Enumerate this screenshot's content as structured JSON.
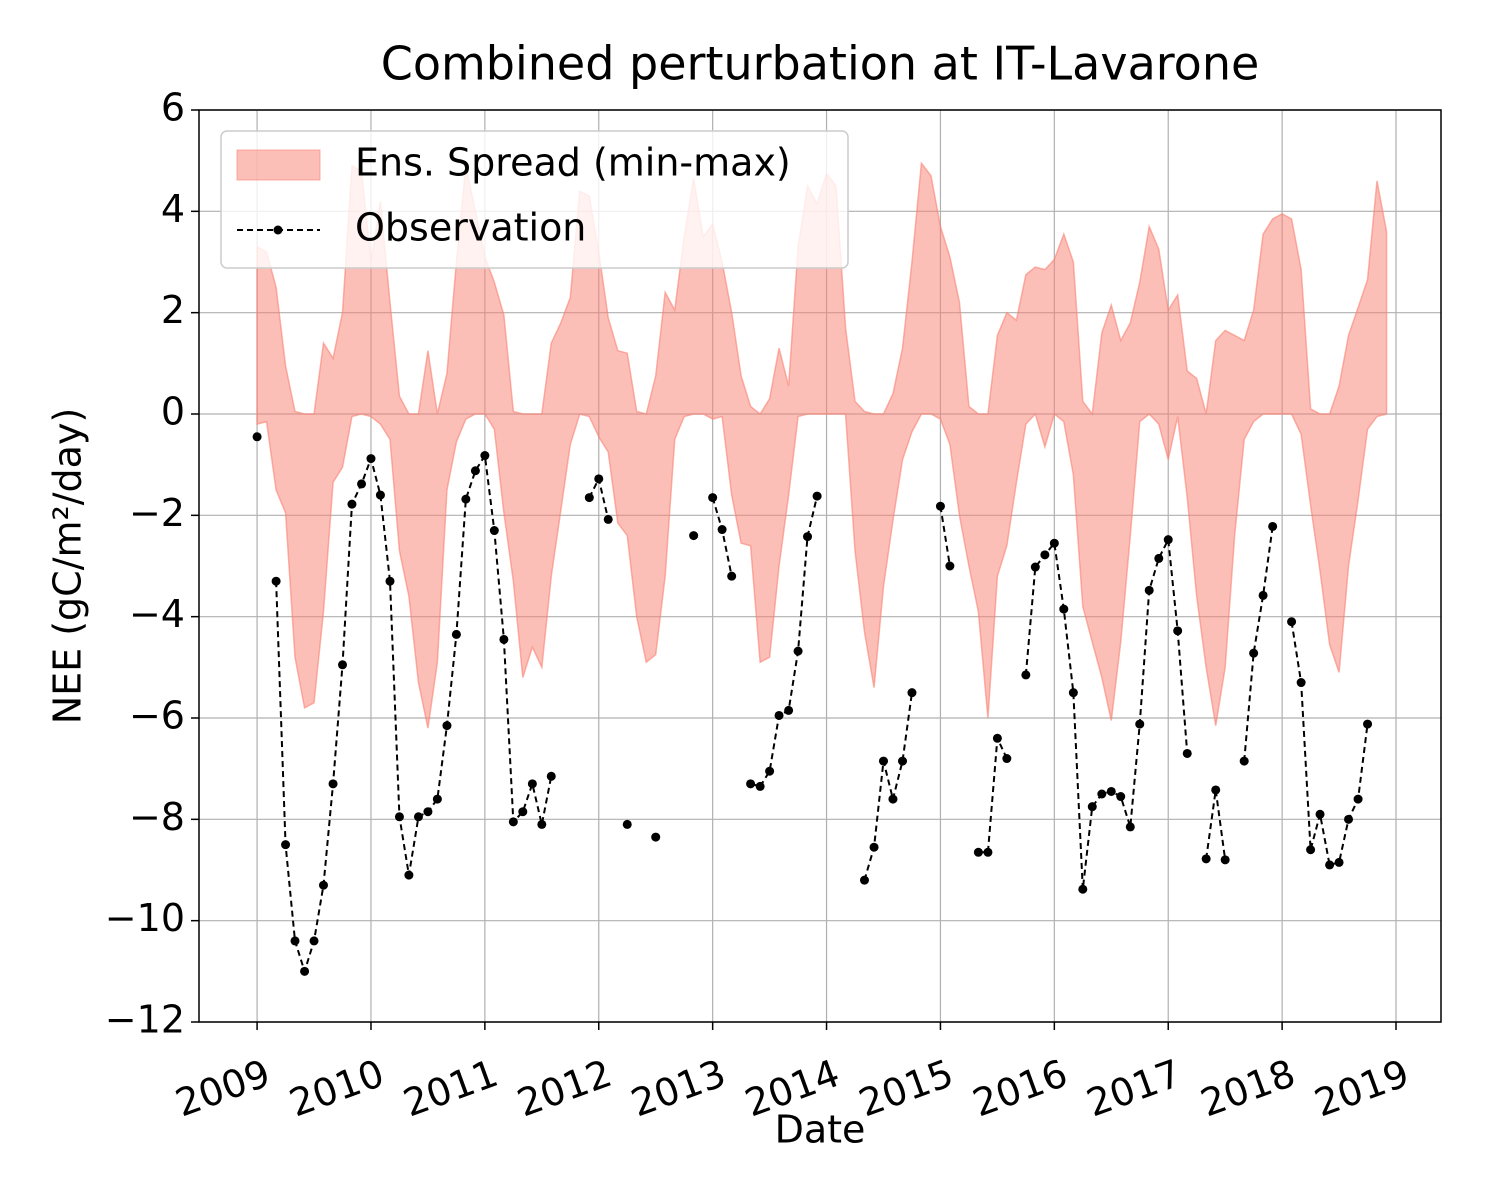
{
  "chart_data": {
    "type": "line",
    "title": "Combined perturbation at IT-Lavarone",
    "x_label": "Date",
    "y_label": "NEE  (gC/m²/day)",
    "xlim": [
      2008.49,
      2019.395
    ],
    "xticks": [
      2009,
      2010,
      2011,
      2012,
      2013,
      2014,
      2015,
      2016,
      2017,
      2018,
      2019
    ],
    "ylim": [
      -12,
      6
    ],
    "yticks": [
      {
        "value": -12,
        "label": "−12"
      },
      {
        "value": -10,
        "label": "−10"
      },
      {
        "value": -8,
        "label": "−8"
      },
      {
        "value": -6,
        "label": "−6"
      },
      {
        "value": -4,
        "label": "−4"
      },
      {
        "value": -2,
        "label": "−2"
      },
      0,
      2,
      4,
      6
    ],
    "grid": true,
    "legend": "upper left",
    "x": [
      2009,
      2009.083,
      2009.167,
      2009.25,
      2009.333,
      2009.417,
      2009.5,
      2009.583,
      2009.667,
      2009.75,
      2009.833,
      2009.917,
      2010,
      2010.083,
      2010.167,
      2010.25,
      2010.333,
      2010.417,
      2010.5,
      2010.583,
      2010.667,
      2010.75,
      2010.833,
      2010.917,
      2011,
      2011.083,
      2011.167,
      2011.25,
      2011.333,
      2011.417,
      2011.5,
      2011.583,
      2011.667,
      2011.75,
      2011.833,
      2011.917,
      2012,
      2012.083,
      2012.167,
      2012.25,
      2012.333,
      2012.417,
      2012.5,
      2012.583,
      2012.667,
      2012.75,
      2012.833,
      2012.917,
      2013,
      2013.083,
      2013.167,
      2013.25,
      2013.333,
      2013.417,
      2013.5,
      2013.583,
      2013.667,
      2013.75,
      2013.833,
      2013.917,
      2014,
      2014.083,
      2014.167,
      2014.25,
      2014.333,
      2014.417,
      2014.5,
      2014.583,
      2014.667,
      2014.75,
      2014.833,
      2014.917,
      2015,
      2015.083,
      2015.167,
      2015.25,
      2015.333,
      2015.417,
      2015.5,
      2015.583,
      2015.667,
      2015.75,
      2015.833,
      2015.917,
      2016,
      2016.083,
      2016.167,
      2016.25,
      2016.333,
      2016.417,
      2016.5,
      2016.583,
      2016.667,
      2016.75,
      2016.833,
      2016.917,
      2017,
      2017.083,
      2017.167,
      2017.25,
      2017.333,
      2017.417,
      2017.5,
      2017.583,
      2017.667,
      2017.75,
      2017.833,
      2017.917,
      2018,
      2018.083,
      2018.167,
      2018.25,
      2018.333,
      2018.417,
      2018.5,
      2018.583,
      2018.667,
      2018.75,
      2018.833,
      2018.917
    ],
    "series": [
      {
        "name": "Ens. Spread (min-max)",
        "kind": "band",
        "color": "#fa8072",
        "upper": [
          3.3,
          3.2,
          2.5,
          0.95,
          0.05,
          0,
          0,
          1.4,
          1.1,
          2,
          4.9,
          4.8,
          3,
          4.2,
          2.2,
          0.35,
          0,
          0,
          1.25,
          0,
          0.8,
          3,
          4.9,
          4,
          3.1,
          2.6,
          1.95,
          0.05,
          0,
          0,
          0,
          1.4,
          1.8,
          2.3,
          4.4,
          4.3,
          3.2,
          1.9,
          1.25,
          1.2,
          0.05,
          0,
          0.75,
          2.4,
          2.05,
          3.5,
          4.65,
          3.5,
          3.75,
          3,
          2,
          0.75,
          0.15,
          0,
          0.3,
          1.3,
          0.55,
          3.3,
          4.5,
          4.15,
          4.75,
          4.5,
          1.7,
          0.25,
          0.05,
          0,
          0,
          0.4,
          1.3,
          3,
          4.95,
          4.7,
          3.7,
          3.1,
          2.2,
          0.15,
          0,
          0,
          1.55,
          2,
          1.85,
          2.75,
          2.9,
          2.85,
          3.05,
          3.55,
          3,
          0.25,
          0,
          1.6,
          2.15,
          1.45,
          1.8,
          2.6,
          3.7,
          3.25,
          2.05,
          2.35,
          0.85,
          0.7,
          0,
          1.45,
          1.65,
          1.55,
          1.45,
          2.05,
          3.55,
          3.85,
          3.95,
          3.85,
          2.85,
          0.1,
          0,
          0,
          0.55,
          1.55,
          2.1,
          2.65,
          4.6,
          3.6
        ],
        "lower": [
          -0.2,
          -0.15,
          -1.5,
          -1.95,
          -4.8,
          -5.8,
          -5.7,
          -3.9,
          -1.35,
          -1.05,
          -0.05,
          0,
          -0.05,
          -0.2,
          -0.5,
          -2.7,
          -3.6,
          -5.3,
          -6.2,
          -4.9,
          -1.5,
          -0.55,
          -0.1,
          0,
          0,
          -0.3,
          -1.95,
          -3.3,
          -5.2,
          -4.6,
          -5,
          -3.2,
          -1.9,
          -0.6,
          0,
          -0.05,
          -0.45,
          -0.75,
          -2.15,
          -2.4,
          -4,
          -4.9,
          -4.75,
          -3.2,
          -0.5,
          -0.05,
          0,
          0,
          -0.1,
          -0.05,
          -1.6,
          -2.55,
          -2.6,
          -4.9,
          -4.8,
          -3,
          -1.6,
          -0.05,
          0,
          0,
          0,
          0,
          0,
          -2.7,
          -4.3,
          -5.4,
          -3.4,
          -2.1,
          -0.9,
          -0.35,
          0,
          0,
          -0.1,
          -0.6,
          -2,
          -3,
          -3.9,
          -6,
          -3.2,
          -2.6,
          -1.35,
          -0.2,
          0,
          -0.65,
          0,
          -0.15,
          -1.2,
          -3.8,
          -4.5,
          -5.2,
          -6.05,
          -4.5,
          -2.4,
          -0.15,
          0,
          -0.2,
          -0.9,
          -0.05,
          -1.65,
          -3.6,
          -5,
          -6.15,
          -5,
          -2.4,
          -0.5,
          -0.15,
          0,
          0,
          0,
          0,
          -0.4,
          -1.8,
          -3.1,
          -4.55,
          -5.1,
          -3,
          -1.7,
          -0.3,
          -0.05,
          0
        ]
      },
      {
        "name": "Observation",
        "kind": "line",
        "color": "#000000",
        "values": [
          -0.45,
          null,
          -3.3,
          -8.5,
          -10.4,
          -11,
          -10.4,
          -9.3,
          -7.3,
          -4.95,
          -1.78,
          -1.38,
          -0.88,
          -1.6,
          -3.3,
          -7.95,
          -9.1,
          -7.95,
          -7.85,
          -7.6,
          -6.15,
          -4.35,
          -1.68,
          -1.12,
          -0.82,
          -2.3,
          -4.45,
          -8.05,
          -7.85,
          -7.3,
          -8.1,
          -7.15,
          null,
          null,
          null,
          -1.65,
          -1.28,
          -2.08,
          null,
          -8.1,
          null,
          null,
          -8.35,
          null,
          null,
          null,
          -2.4,
          null,
          -1.65,
          -2.28,
          -3.2,
          null,
          -7.3,
          -7.35,
          -7.05,
          -5.95,
          -5.85,
          -4.68,
          -2.42,
          -1.62,
          null,
          null,
          null,
          null,
          -9.2,
          -8.55,
          -6.85,
          -7.6,
          -6.85,
          -5.5,
          null,
          null,
          -1.82,
          -3,
          null,
          null,
          -8.65,
          -8.65,
          -6.4,
          -6.8,
          null,
          -5.15,
          -3.02,
          -2.78,
          -2.55,
          -3.85,
          -5.5,
          -9.38,
          -7.75,
          -7.5,
          -7.45,
          -7.55,
          -8.15,
          -6.12,
          -3.48,
          -2.85,
          -2.48,
          -4.28,
          -6.7,
          null,
          -8.78,
          -7.42,
          -8.8,
          null,
          -6.85,
          -4.72,
          -3.58,
          -2.22,
          null,
          -4.1,
          -5.3,
          -8.6,
          -7.9,
          -8.9,
          -8.85,
          -8,
          -7.6,
          -6.12,
          null,
          null
        ]
      }
    ]
  }
}
